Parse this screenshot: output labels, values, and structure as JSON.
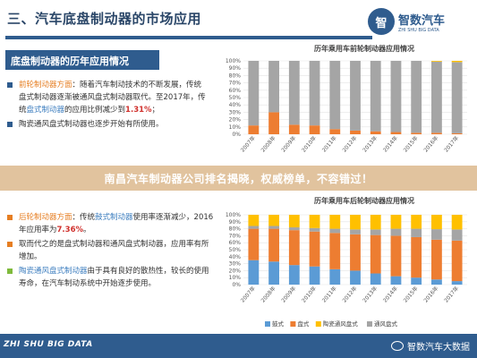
{
  "header": {
    "title": "三、汽车底盘制动器的市场应用",
    "logo_mark": "智",
    "logo_name": "智数汽车",
    "logo_sub": "ZHI SHU BIG DATA"
  },
  "section": {
    "label": "底盘制动器的历年应用情况"
  },
  "front": {
    "item1": {
      "title": "前轮制动器方面",
      "p1": "：随着汽车制动技术的不断发展，传统盘式制动器逐渐被通风盘式制动器取代。至2017年，传统",
      "highlight": "盘式制动器",
      "p2": "的应用比例减少到",
      "value": "1.31%",
      "p3": "；"
    },
    "item2": "陶瓷通风盘式制动器也逐步开始有所使用。"
  },
  "rear": {
    "item1": {
      "title": "后轮制动器方面",
      "p1": "：传统",
      "highlight": "鼓式制动器",
      "p2": "使用率逐渐减少，2016年应用率为",
      "value": "7.36%",
      "p3": "。"
    },
    "item2": "取而代之的是盘式制动器和通风盘式制动器，应用率有所增加。",
    "item3": {
      "highlight": "陶瓷通风盘式制动器",
      "text": "由于具有良好的散热性，较长的使用寿命，在汽车制动系统中开始逐步使用。"
    }
  },
  "banner": {
    "text": "南昌汽车制动器公司排名揭晓，权威榜单，不容错过！"
  },
  "footer": {
    "left": "ZHI SHU BIG DATA",
    "right": "智数汽车大数据"
  },
  "colors": {
    "drum": "#5b9bd5",
    "disc": "#ed7d31",
    "ventilated": "#a5a5a5",
    "ceramic": "#ffc000",
    "primary": "#2f5c8e"
  },
  "chart_data": [
    {
      "type": "bar",
      "stacked": true,
      "title": "历年乘用车前轮制动器应用情况",
      "categories": [
        "2007年",
        "2008年",
        "2009年",
        "2010年",
        "2011年",
        "2012年",
        "2013年",
        "2014年",
        "2015年",
        "2016年",
        "2017年"
      ],
      "series": [
        {
          "name": "盘式",
          "values": [
            12,
            30,
            13,
            12,
            7,
            5,
            4,
            3,
            2,
            2,
            1.31
          ]
        },
        {
          "name": "通风盘式",
          "values": [
            88,
            70,
            87,
            88,
            93,
            95,
            96,
            97,
            98,
            97,
            97
          ]
        },
        {
          "name": "陶瓷通风盘式",
          "values": [
            0,
            0,
            0,
            0,
            0,
            0,
            0,
            0,
            0,
            1,
            1.69
          ]
        }
      ],
      "yticks": [
        "0%",
        "10%",
        "20%",
        "30%",
        "40%",
        "50%",
        "60%",
        "70%",
        "80%",
        "90%",
        "100%"
      ],
      "ylim": [
        0,
        100
      ],
      "grid": true
    },
    {
      "type": "bar",
      "stacked": true,
      "title": "历年乘用车后轮制动器应用情况",
      "categories": [
        "2007年",
        "2008年",
        "2009年",
        "2010年",
        "2011年",
        "2012年",
        "2013年",
        "2014年",
        "2015年",
        "2016年",
        "2017年"
      ],
      "series": [
        {
          "name": "鼓式",
          "values": [
            35,
            33,
            28,
            26,
            22,
            20,
            16,
            12,
            10,
            7.36,
            5
          ]
        },
        {
          "name": "盘式",
          "values": [
            45,
            47,
            50,
            50,
            52,
            52,
            55,
            58,
            58,
            57,
            58
          ]
        },
        {
          "name": "通风盘式",
          "values": [
            4,
            4,
            4,
            5,
            6,
            7,
            8,
            10,
            12,
            15,
            16
          ]
        },
        {
          "name": "陶瓷通风盘式",
          "values": [
            16,
            16,
            18,
            19,
            20,
            21,
            21,
            20,
            20,
            20.64,
            21
          ]
        }
      ],
      "yticks": [
        "0%",
        "10%",
        "20%",
        "30%",
        "40%",
        "50%",
        "60%",
        "70%",
        "80%",
        "90%",
        "100%"
      ],
      "ylim": [
        0,
        100
      ],
      "grid": true,
      "legend_position": "bottom",
      "legend": [
        "鼓式",
        "盘式",
        "陶瓷通风盘式",
        "通风盘式"
      ]
    }
  ]
}
